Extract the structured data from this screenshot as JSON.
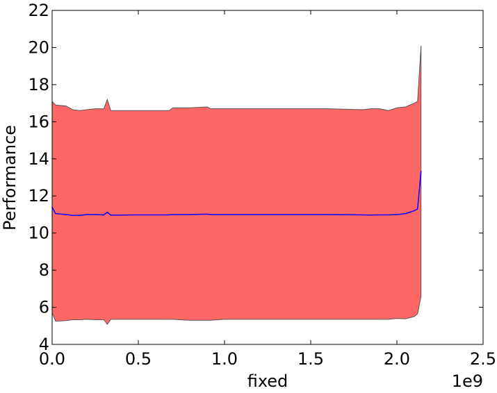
{
  "chart_data": {
    "type": "line",
    "x_label": "fixed",
    "y_label": "Performance",
    "x_offset_label": "1e9",
    "x": [
      0,
      0.02,
      0.08,
      0.12,
      0.16,
      0.2,
      0.25,
      0.3,
      0.32,
      0.34,
      0.4,
      0.5,
      0.6,
      0.68,
      0.7,
      0.8,
      0.9,
      0.92,
      1.0,
      1.2,
      1.4,
      1.6,
      1.8,
      1.85,
      1.9,
      1.95,
      2.0,
      2.05,
      2.1,
      2.12,
      2.14
    ],
    "series": [
      {
        "color": "#0000ff",
        "values": [
          11.4,
          11.05,
          11.0,
          10.95,
          10.95,
          11.0,
          11.0,
          10.98,
          11.12,
          10.97,
          10.97,
          10.98,
          10.98,
          10.98,
          11.0,
          11.0,
          11.02,
          11.0,
          11.0,
          11.0,
          11.0,
          11.0,
          10.98,
          10.97,
          10.98,
          10.98,
          11.0,
          11.05,
          11.2,
          11.3,
          13.35
        ]
      }
    ],
    "band": {
      "color": "#ff6666",
      "edge_color": "#555555",
      "upper": [
        17.1,
        16.9,
        16.85,
        16.65,
        16.6,
        16.65,
        16.7,
        16.7,
        17.2,
        16.6,
        16.6,
        16.6,
        16.6,
        16.6,
        16.75,
        16.75,
        16.8,
        16.7,
        16.7,
        16.7,
        16.7,
        16.7,
        16.65,
        16.7,
        16.7,
        16.6,
        16.75,
        16.8,
        17.0,
        17.1,
        20.1
      ],
      "lower": [
        5.7,
        5.25,
        5.28,
        5.33,
        5.33,
        5.35,
        5.33,
        5.33,
        5.08,
        5.35,
        5.35,
        5.35,
        5.35,
        5.35,
        5.35,
        5.3,
        5.3,
        5.3,
        5.35,
        5.35,
        5.35,
        5.35,
        5.35,
        5.35,
        5.35,
        5.35,
        5.4,
        5.38,
        5.5,
        5.65,
        6.6
      ]
    },
    "xlim": [
      0,
      2.5
    ],
    "xticks": [
      {
        "value": 0,
        "label": "0.0"
      },
      0.5,
      {
        "value": 1,
        "label": "1.0"
      },
      1.5,
      {
        "value": 2,
        "label": "2.0"
      },
      2.5
    ],
    "ylim": [
      4,
      22
    ],
    "yticks": [
      4,
      6,
      8,
      10,
      12,
      14,
      16,
      18,
      20,
      22
    ]
  }
}
